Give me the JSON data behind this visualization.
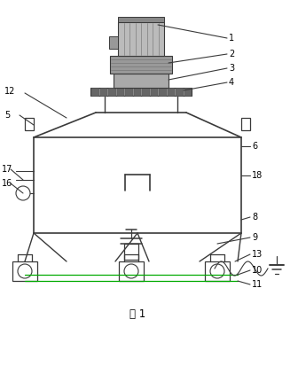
{
  "title": "图 1",
  "bg_color": "#ffffff",
  "line_color": "#3a3a3a",
  "green_color": "#00aa00",
  "label_color": "#000000",
  "fig_width": 3.36,
  "fig_height": 4.13,
  "dpi": 100
}
